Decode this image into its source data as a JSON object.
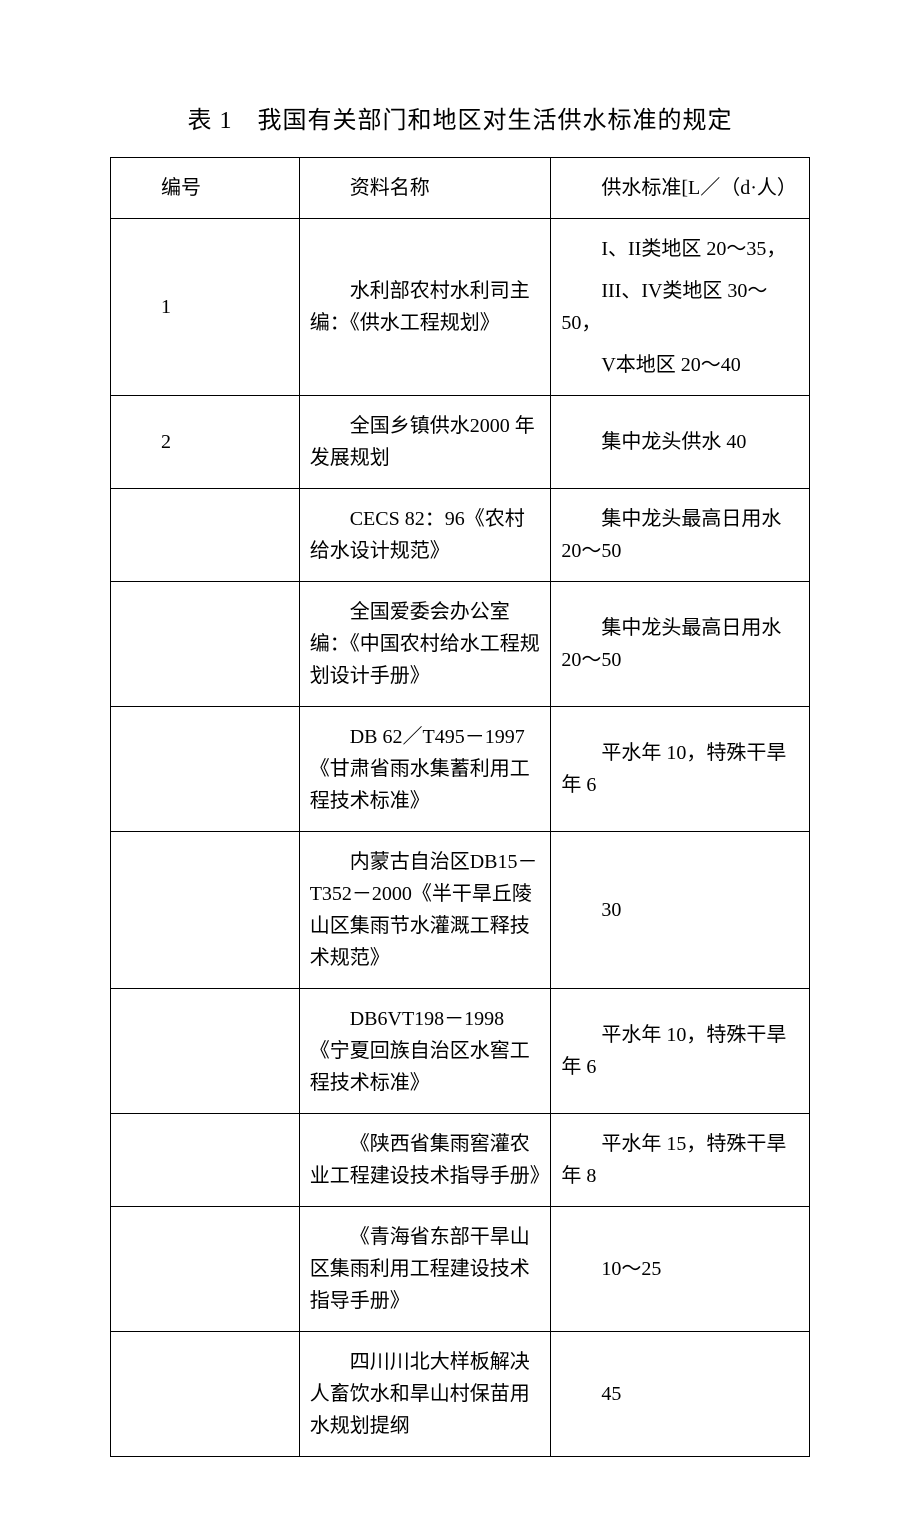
{
  "title": "表 1　我国有关部门和地区对生活供水标准的规定",
  "watermark": "",
  "headers": {
    "col1": "编号",
    "col2": "资料名称",
    "col3": "供水标准[L／（d·人）"
  },
  "rows": [
    {
      "c1": "1",
      "c2": "水利部农村水利司主编：《供水工程规划》",
      "c3_lines": [
        "I、II类地区 20～35，",
        "III、IV类地区 30～50，",
        "V本地区 20～40"
      ]
    },
    {
      "c1": "2",
      "c2": "全国乡镇供水2000 年发展规划",
      "c3": "集中龙头供水 40"
    },
    {
      "c1": "",
      "c2": "CECS 82：96《农村给水设计规范》",
      "c3": "集中龙头最高日用水 20～50"
    },
    {
      "c1": "",
      "c2": "全国爱委会办公室编：《中国农村给水工程规划设计手册》",
      "c3": "集中龙头最高日用水 20～50"
    },
    {
      "c1": "",
      "c2": "DB 62／T495－1997《甘肃省雨水集蓄利用工程技术标准》",
      "c3": "平水年 10，特殊干旱年 6"
    },
    {
      "c1": "",
      "c2": "内蒙古自治区DB15－T352－2000《半干旱丘陵山区集雨节水灌溉工释技术规范》",
      "c3": "30"
    },
    {
      "c1": "",
      "c2": "DB6VT198－1998《宁夏回族自治区水窖工程技术标准》",
      "c3": "平水年 10，特殊干旱年 6"
    },
    {
      "c1": "",
      "c2": "《陕西省集雨窖灌农业工程建设技术指导手册》",
      "c3": "平水年 15，特殊干旱年 8"
    },
    {
      "c1": "",
      "c2": "《青海省东部干旱山区集雨利用工程建设技术指导手册》",
      "c3": "10～25"
    },
    {
      "c1": "",
      "c2": "四川川北大样板解决人畜饮水和旱山村保苗用水规划提纲",
      "c3": "45"
    }
  ]
}
